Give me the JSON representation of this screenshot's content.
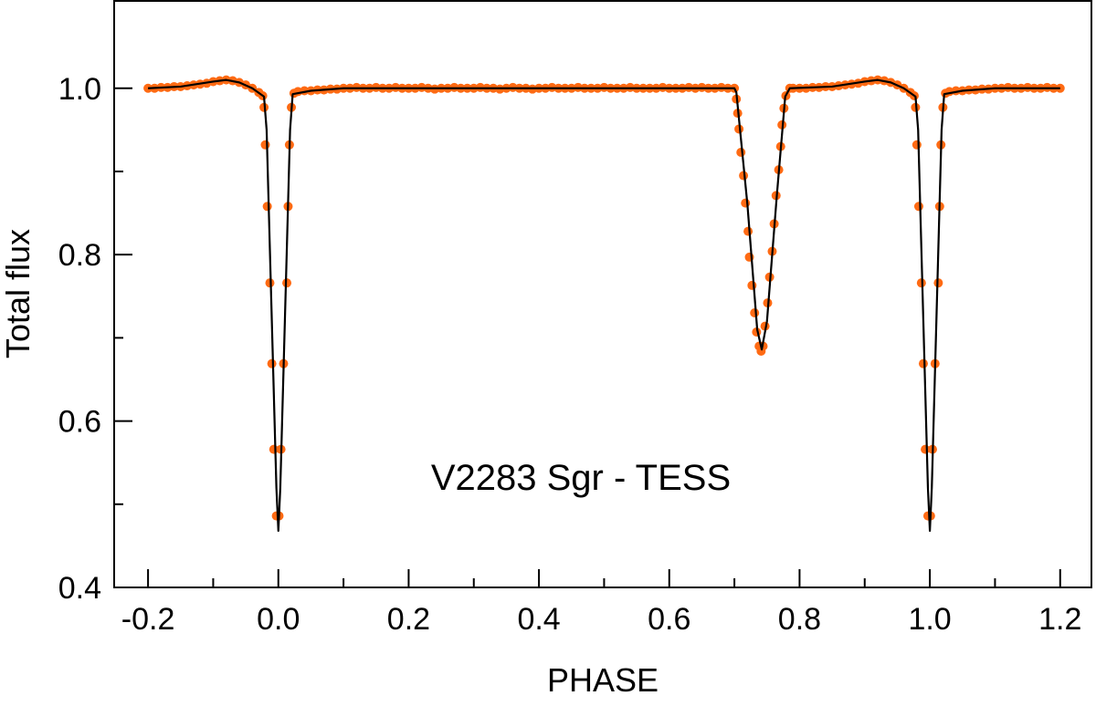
{
  "chart_data": {
    "type": "scatter",
    "title": "",
    "annotation": "V2283 Sgr - TESS",
    "xlabel": "PHASE",
    "ylabel": "Total flux",
    "xlim": [
      -0.252,
      1.248
    ],
    "ylim": [
      0.4,
      1.105
    ],
    "xticks": [
      -0.2,
      0.0,
      0.2,
      0.4,
      0.6,
      0.8,
      1.0,
      1.2
    ],
    "xtick_labels": [
      "-0.2",
      "0.0",
      "0.2",
      "0.4",
      "0.6",
      "0.8",
      "1.0",
      "1.2"
    ],
    "xminor": [
      -0.1,
      0.1,
      0.3,
      0.5,
      0.7,
      0.9,
      1.1
    ],
    "yticks": [
      0.4,
      0.6,
      0.8,
      1.0
    ],
    "ytick_labels": [
      "0.4",
      "0.6",
      "0.8",
      "1.0"
    ],
    "yminor": [
      0.5,
      0.7,
      0.9
    ],
    "grid": false,
    "colors": {
      "observed": "#ff6a13",
      "model": "#000000"
    },
    "series": [
      {
        "kind": "observed-points",
        "points": [
          [
            -0.2,
            1.0
          ],
          [
            -0.19,
            1.0
          ],
          [
            -0.18,
            1.001
          ],
          [
            -0.17,
            1.001
          ],
          [
            -0.16,
            1.002
          ],
          [
            -0.15,
            1.002
          ],
          [
            -0.14,
            1.003
          ],
          [
            -0.13,
            1.004
          ],
          [
            -0.12,
            1.005
          ],
          [
            -0.11,
            1.006
          ],
          [
            -0.1,
            1.008
          ],
          [
            -0.09,
            1.009
          ],
          [
            -0.08,
            1.01
          ],
          [
            -0.07,
            1.009
          ],
          [
            -0.06,
            1.007
          ],
          [
            -0.05,
            1.004
          ],
          [
            -0.04,
            1.0
          ],
          [
            -0.03,
            0.995
          ],
          [
            -0.024,
            0.991
          ],
          [
            -0.022,
            0.977
          ],
          [
            -0.02,
            0.932
          ],
          [
            -0.017,
            0.858
          ],
          [
            -0.013,
            0.766
          ],
          [
            -0.01,
            0.669
          ],
          [
            -0.007,
            0.566
          ],
          [
            -0.003,
            0.486
          ],
          [
            0.001,
            0.486
          ],
          [
            0.004,
            0.566
          ],
          [
            0.008,
            0.669
          ],
          [
            0.013,
            0.766
          ],
          [
            0.015,
            0.858
          ],
          [
            0.017,
            0.932
          ],
          [
            0.02,
            0.977
          ],
          [
            0.024,
            0.994
          ],
          [
            0.03,
            0.996
          ],
          [
            0.04,
            0.997
          ],
          [
            0.05,
            0.997
          ],
          [
            0.06,
            0.998
          ],
          [
            0.07,
            0.998
          ],
          [
            0.08,
            0.999
          ],
          [
            0.09,
            0.999
          ],
          [
            0.1,
            1.0
          ],
          [
            0.11,
            1.0
          ],
          [
            0.12,
            1.001
          ],
          [
            0.13,
            1.0
          ],
          [
            0.14,
            1.0
          ],
          [
            0.15,
            1.001
          ],
          [
            0.16,
            1.0
          ],
          [
            0.17,
            1.0
          ],
          [
            0.18,
            1.001
          ],
          [
            0.19,
            1.0
          ],
          [
            0.2,
            1.0
          ],
          [
            0.21,
            1.0
          ],
          [
            0.22,
            1.001
          ],
          [
            0.23,
            1.0
          ],
          [
            0.24,
            0.999
          ],
          [
            0.25,
            1.0
          ],
          [
            0.26,
            1.0
          ],
          [
            0.27,
            1.001
          ],
          [
            0.28,
            1.0
          ],
          [
            0.29,
            1.0
          ],
          [
            0.3,
            1.0
          ],
          [
            0.31,
            1.001
          ],
          [
            0.32,
            1.0
          ],
          [
            0.33,
            1.0
          ],
          [
            0.34,
            0.999
          ],
          [
            0.35,
            1.0
          ],
          [
            0.36,
            1.001
          ],
          [
            0.37,
            1.0
          ],
          [
            0.38,
            1.0
          ],
          [
            0.39,
            0.999
          ],
          [
            0.4,
            1.0
          ],
          [
            0.41,
            1.0
          ],
          [
            0.42,
            1.001
          ],
          [
            0.43,
            1.0
          ],
          [
            0.44,
            1.0
          ],
          [
            0.45,
            1.0
          ],
          [
            0.46,
            1.001
          ],
          [
            0.47,
            1.0
          ],
          [
            0.48,
            1.0
          ],
          [
            0.49,
            1.0
          ],
          [
            0.5,
            1.001
          ],
          [
            0.51,
            1.0
          ],
          [
            0.52,
            1.0
          ],
          [
            0.53,
            1.0
          ],
          [
            0.54,
            1.001
          ],
          [
            0.55,
            1.0
          ],
          [
            0.56,
            1.0
          ],
          [
            0.57,
            1.0
          ],
          [
            0.58,
            1.0
          ],
          [
            0.59,
            1.001
          ],
          [
            0.6,
            1.0
          ],
          [
            0.61,
            1.0
          ],
          [
            0.62,
            1.0
          ],
          [
            0.63,
            1.001
          ],
          [
            0.64,
            1.0
          ],
          [
            0.65,
            1.001
          ],
          [
            0.66,
            1.0
          ],
          [
            0.67,
            1.0
          ],
          [
            0.68,
            1.001
          ],
          [
            0.69,
            1.0
          ],
          [
            0.7,
            1.0
          ],
          [
            0.703,
            0.987
          ],
          [
            0.705,
            0.97
          ],
          [
            0.707,
            0.951
          ],
          [
            0.71,
            0.923
          ],
          [
            0.714,
            0.895
          ],
          [
            0.717,
            0.862
          ],
          [
            0.721,
            0.828
          ],
          [
            0.723,
            0.797
          ],
          [
            0.727,
            0.763
          ],
          [
            0.731,
            0.73
          ],
          [
            0.734,
            0.707
          ],
          [
            0.738,
            0.69
          ],
          [
            0.741,
            0.684
          ],
          [
            0.744,
            0.69
          ],
          [
            0.747,
            0.714
          ],
          [
            0.751,
            0.742
          ],
          [
            0.754,
            0.773
          ],
          [
            0.758,
            0.804
          ],
          [
            0.761,
            0.837
          ],
          [
            0.764,
            0.871
          ],
          [
            0.768,
            0.902
          ],
          [
            0.771,
            0.93
          ],
          [
            0.773,
            0.956
          ],
          [
            0.776,
            0.976
          ],
          [
            0.779,
            0.991
          ],
          [
            0.785,
            1.0
          ],
          [
            0.79,
            1.0
          ],
          [
            0.8,
            1.0
          ],
          [
            0.81,
            1.0
          ],
          [
            0.82,
            1.001
          ],
          [
            0.83,
            1.001
          ],
          [
            0.84,
            1.002
          ],
          [
            0.85,
            1.002
          ],
          [
            0.86,
            1.003
          ],
          [
            0.87,
            1.004
          ],
          [
            0.88,
            1.005
          ],
          [
            0.89,
            1.006
          ],
          [
            0.9,
            1.008
          ],
          [
            0.91,
            1.009
          ],
          [
            0.92,
            1.01
          ],
          [
            0.93,
            1.009
          ],
          [
            0.94,
            1.007
          ],
          [
            0.95,
            1.004
          ],
          [
            0.96,
            1.0
          ],
          [
            0.97,
            0.995
          ],
          [
            0.976,
            0.991
          ],
          [
            0.978,
            0.977
          ],
          [
            0.98,
            0.932
          ],
          [
            0.983,
            0.858
          ],
          [
            0.987,
            0.766
          ],
          [
            0.99,
            0.669
          ],
          [
            0.993,
            0.566
          ],
          [
            0.997,
            0.486
          ],
          [
            1.001,
            0.486
          ],
          [
            1.004,
            0.566
          ],
          [
            1.008,
            0.669
          ],
          [
            1.013,
            0.766
          ],
          [
            1.015,
            0.858
          ],
          [
            1.017,
            0.932
          ],
          [
            1.02,
            0.977
          ],
          [
            1.024,
            0.994
          ],
          [
            1.03,
            0.996
          ],
          [
            1.04,
            0.997
          ],
          [
            1.05,
            0.997
          ],
          [
            1.06,
            0.998
          ],
          [
            1.07,
            0.998
          ],
          [
            1.08,
            0.999
          ],
          [
            1.09,
            0.999
          ],
          [
            1.1,
            1.0
          ],
          [
            1.11,
            1.0
          ],
          [
            1.12,
            1.001
          ],
          [
            1.13,
            1.0
          ],
          [
            1.14,
            1.0
          ],
          [
            1.15,
            1.001
          ],
          [
            1.16,
            1.0
          ],
          [
            1.17,
            1.0
          ],
          [
            1.18,
            1.001
          ],
          [
            1.19,
            1.0
          ],
          [
            1.2,
            1.0
          ]
        ]
      },
      {
        "kind": "model-curve",
        "points": [
          [
            -0.2,
            1.0
          ],
          [
            -0.15,
            1.002
          ],
          [
            -0.1,
            1.008
          ],
          [
            -0.08,
            1.01
          ],
          [
            -0.06,
            1.007
          ],
          [
            -0.04,
            1.0
          ],
          [
            -0.022,
            0.99
          ],
          [
            -0.018,
            0.95
          ],
          [
            -0.01,
            0.72
          ],
          [
            -0.003,
            0.52
          ],
          [
            0.0,
            0.468
          ],
          [
            0.003,
            0.52
          ],
          [
            0.01,
            0.72
          ],
          [
            0.018,
            0.95
          ],
          [
            0.022,
            0.993
          ],
          [
            0.05,
            0.997
          ],
          [
            0.1,
            1.0
          ],
          [
            0.7,
            1.0
          ],
          [
            0.703,
            0.995
          ],
          [
            0.72,
            0.86
          ],
          [
            0.735,
            0.71
          ],
          [
            0.742,
            0.686
          ],
          [
            0.75,
            0.72
          ],
          [
            0.765,
            0.87
          ],
          [
            0.778,
            0.99
          ],
          [
            0.785,
            1.0
          ],
          [
            0.85,
            1.002
          ],
          [
            0.9,
            1.008
          ],
          [
            0.92,
            1.01
          ],
          [
            0.94,
            1.007
          ],
          [
            0.96,
            1.0
          ],
          [
            0.978,
            0.99
          ],
          [
            0.982,
            0.95
          ],
          [
            0.99,
            0.72
          ],
          [
            0.997,
            0.52
          ],
          [
            1.0,
            0.468
          ],
          [
            1.003,
            0.52
          ],
          [
            1.01,
            0.72
          ],
          [
            1.018,
            0.95
          ],
          [
            1.022,
            0.993
          ],
          [
            1.05,
            0.997
          ],
          [
            1.1,
            1.0
          ],
          [
            1.2,
            1.0
          ]
        ]
      }
    ]
  }
}
